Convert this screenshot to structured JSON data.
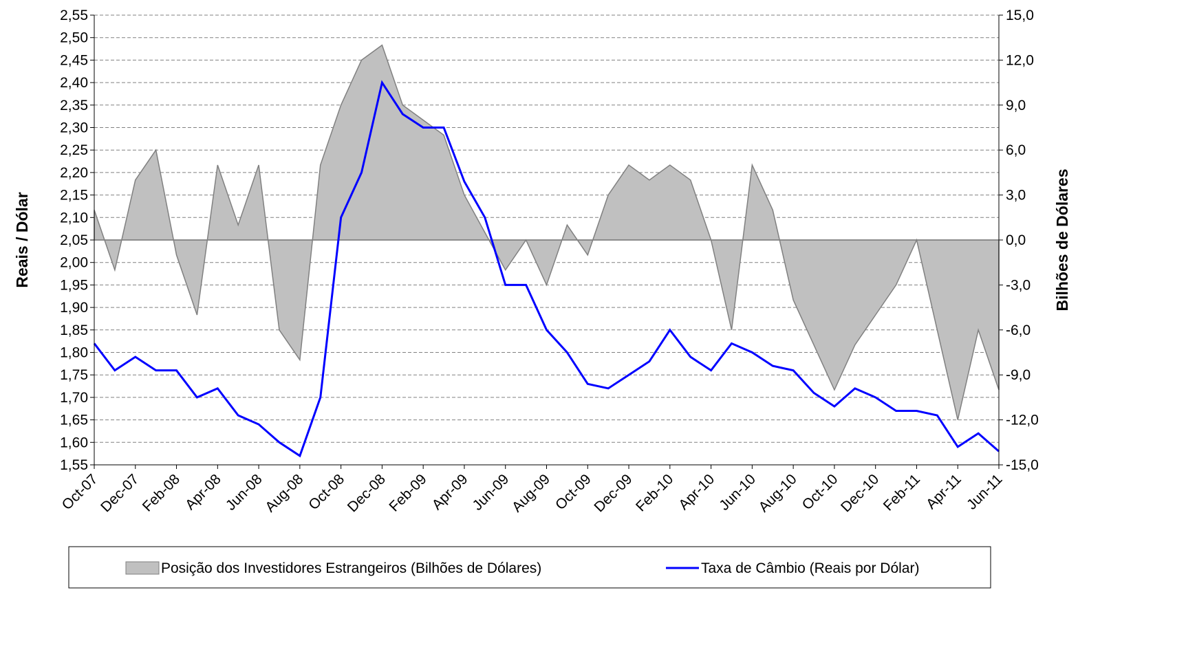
{
  "chart_data": {
    "type": "line",
    "categories": [
      "Oct-07",
      null,
      "Dec-07",
      null,
      "Feb-08",
      null,
      "Apr-08",
      null,
      "Jun-08",
      null,
      "Aug-08",
      null,
      "Oct-08",
      null,
      "Dec-08",
      null,
      "Feb-09",
      null,
      "Apr-09",
      null,
      "Jun-09",
      null,
      "Aug-09",
      null,
      "Oct-09",
      null,
      "Dec-09",
      null,
      "Feb-10",
      null,
      "Apr-10",
      null,
      "Jun-10",
      null,
      "Aug-10",
      null,
      "Oct-10",
      null,
      "Dec-10",
      null,
      "Feb-11",
      null,
      "Apr-11",
      null,
      "Jun-11"
    ],
    "y_label": "Reais / Dólar",
    "y2_label": "Bilhões de Dólares",
    "series": [
      {
        "name": "Posição dos Investidores Estrangeiros (Bilhões de Dólares)",
        "type": "area",
        "axis": "y2",
        "color": "#c0c0c0",
        "edge": "#808080",
        "values": [
          2,
          -2,
          4,
          6,
          -1,
          -5,
          5,
          1,
          5,
          -6,
          -8,
          5,
          9,
          12,
          13,
          9,
          8,
          7,
          3,
          0.5,
          -2,
          0,
          -3,
          1,
          -1,
          3,
          5,
          4,
          5,
          4,
          0,
          -6,
          5,
          2,
          -4,
          -7,
          -10,
          -7,
          -5,
          -3,
          0,
          -6,
          -12,
          -6,
          -10
        ]
      },
      {
        "name": "Taxa de Câmbio (Reais por Dólar)",
        "type": "line",
        "color": "#0000ff",
        "values": [
          1.82,
          1.76,
          1.79,
          1.76,
          1.76,
          1.7,
          1.72,
          1.66,
          1.64,
          1.6,
          1.57,
          1.7,
          2.1,
          2.2,
          2.4,
          2.33,
          2.3,
          2.3,
          2.18,
          2.1,
          1.95,
          1.95,
          1.85,
          1.8,
          1.73,
          1.72,
          1.75,
          1.78,
          1.85,
          1.79,
          1.76,
          1.82,
          1.8,
          1.77,
          1.76,
          1.71,
          1.68,
          1.72,
          1.7,
          1.67,
          1.67,
          1.66,
          1.59,
          1.62,
          1.58
        ]
      }
    ],
    "ylim": [
      1.55,
      2.55
    ],
    "yticks": [
      {
        "value": 1.55,
        "label": "1,55"
      },
      {
        "value": 1.6,
        "label": "1,60"
      },
      {
        "value": 1.65,
        "label": "1,65"
      },
      {
        "value": 1.7,
        "label": "1,70"
      },
      {
        "value": 1.75,
        "label": "1,75"
      },
      {
        "value": 1.8,
        "label": "1,80"
      },
      {
        "value": 1.85,
        "label": "1,85"
      },
      {
        "value": 1.9,
        "label": "1,90"
      },
      {
        "value": 1.95,
        "label": "1,95"
      },
      {
        "value": 2.0,
        "label": "2,00"
      },
      {
        "value": 2.05,
        "label": "2,05"
      },
      {
        "value": 2.1,
        "label": "2,10"
      },
      {
        "value": 2.15,
        "label": "2,15"
      },
      {
        "value": 2.2,
        "label": "2,20"
      },
      {
        "value": 2.25,
        "label": "2,25"
      },
      {
        "value": 2.3,
        "label": "2,30"
      },
      {
        "value": 2.35,
        "label": "2,35"
      },
      {
        "value": 2.4,
        "label": "2,40"
      },
      {
        "value": 2.45,
        "label": "2,45"
      },
      {
        "value": 2.5,
        "label": "2,50"
      },
      {
        "value": 2.55,
        "label": "2,55"
      }
    ],
    "y2lim": [
      -15,
      15
    ],
    "y2ticks": [
      {
        "value": -15,
        "label": "-15,0"
      },
      {
        "value": -12,
        "label": "-12,0"
      },
      {
        "value": -9,
        "label": "-9,0"
      },
      {
        "value": -6,
        "label": "-6,0"
      },
      {
        "value": -3,
        "label": "-3,0"
      },
      {
        "value": 0,
        "label": "0,0"
      },
      {
        "value": 3,
        "label": "3,0"
      },
      {
        "value": 6,
        "label": "6,0"
      },
      {
        "value": 9,
        "label": "9,0"
      },
      {
        "value": 12,
        "label": "12,0"
      },
      {
        "value": 15,
        "label": "15,0"
      }
    ],
    "grid": true,
    "legend": "bottom"
  }
}
